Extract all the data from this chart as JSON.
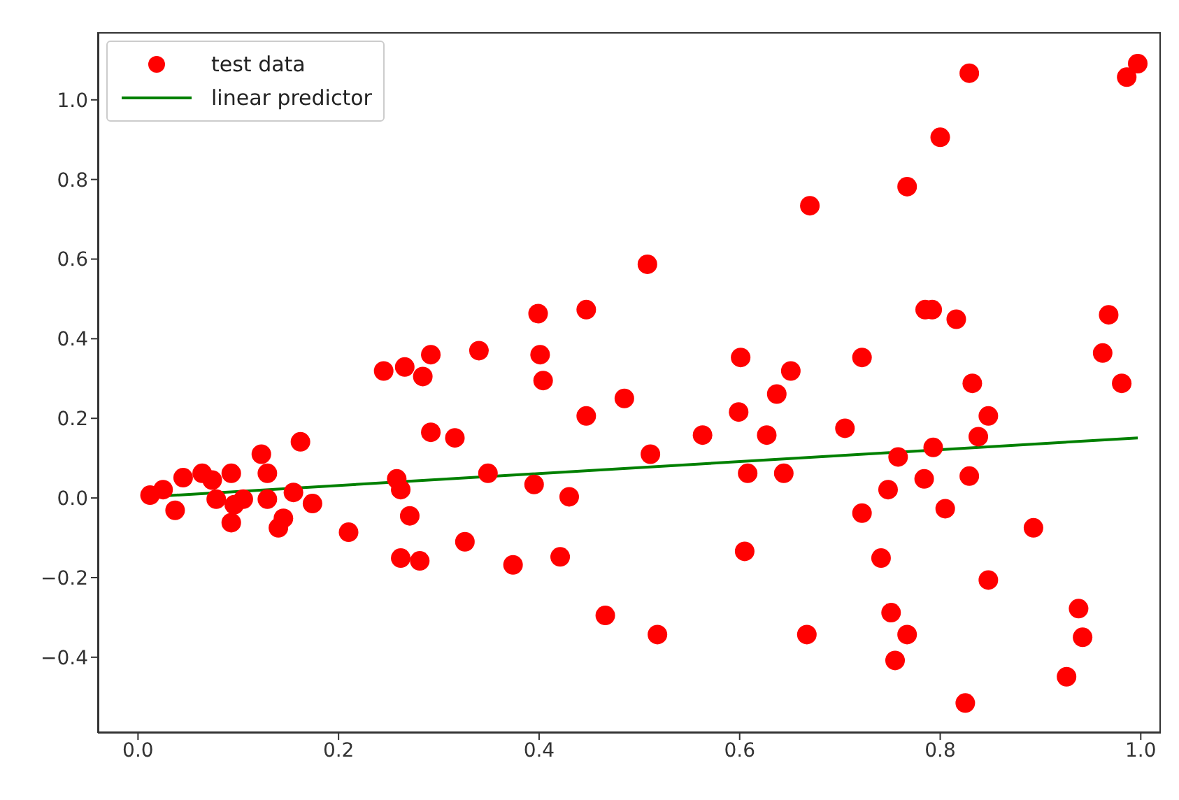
{
  "chart_data": {
    "type": "scatter",
    "legend": "top left",
    "grid": false,
    "xlim": [
      -0.04,
      1.02
    ],
    "ylim": [
      -0.59,
      1.17
    ],
    "xticks": [
      {
        "value": 0,
        "label": "0.0"
      },
      {
        "value": 0.2,
        "label": "0.2"
      },
      {
        "value": 0.4,
        "label": "0.4"
      },
      {
        "value": 0.6,
        "label": "0.6"
      },
      {
        "value": 0.8,
        "label": "0.8"
      },
      {
        "value": 1,
        "label": "1.0"
      }
    ],
    "yticks": [
      {
        "value": -0.4,
        "label": "−0.4"
      },
      {
        "value": -0.2,
        "label": "−0.2"
      },
      {
        "value": 0,
        "label": "0.0"
      },
      {
        "value": 0.2,
        "label": "0.2"
      },
      {
        "value": 0.4,
        "label": "0.4"
      },
      {
        "value": 0.6,
        "label": "0.6"
      },
      {
        "value": 0.8,
        "label": "0.8"
      },
      {
        "value": 1,
        "label": "1.0"
      }
    ],
    "series": [
      {
        "name": "test data",
        "marker": "circle",
        "color": "#ff0000",
        "x": [
          0.012,
          0.025,
          0.037,
          0.045,
          0.064,
          0.074,
          0.093,
          0.078,
          0.093,
          0.096,
          0.105,
          0.129,
          0.123,
          0.129,
          0.14,
          0.145,
          0.155,
          0.162,
          0.174,
          0.21,
          0.245,
          0.266,
          0.292,
          0.284,
          0.258,
          0.262,
          0.271,
          0.262,
          0.281,
          0.292,
          0.316,
          0.326,
          0.34,
          0.349,
          0.374,
          0.395,
          0.399,
          0.401,
          0.404,
          0.421,
          0.43,
          0.447,
          0.447,
          0.466,
          0.485,
          0.511,
          0.508,
          0.518,
          0.563,
          0.599,
          0.601,
          0.608,
          0.605,
          0.637,
          0.627,
          0.644,
          0.651,
          0.667,
          0.67,
          0.705,
          0.722,
          0.722,
          0.741,
          0.748,
          0.751,
          0.755,
          0.758,
          0.767,
          0.767,
          0.785,
          0.792,
          0.784,
          0.793,
          0.8,
          0.805,
          0.816,
          0.829,
          0.825,
          0.829,
          0.832,
          0.838,
          0.848,
          0.848,
          0.893,
          0.926,
          0.938,
          0.942,
          0.962,
          0.968,
          0.981,
          0.986,
          0.997
        ],
        "values": [
          0.007,
          0.021,
          -0.031,
          0.051,
          0.062,
          0.045,
          0.062,
          -0.003,
          -0.062,
          -0.017,
          -0.003,
          -0.003,
          0.11,
          0.062,
          -0.075,
          -0.051,
          0.014,
          0.141,
          -0.014,
          -0.086,
          0.319,
          0.329,
          0.36,
          0.305,
          0.048,
          0.021,
          -0.045,
          -0.151,
          -0.158,
          0.165,
          0.151,
          -0.11,
          0.37,
          0.062,
          -0.168,
          0.034,
          0.463,
          0.36,
          0.295,
          -0.148,
          0.003,
          0.473,
          0.206,
          -0.295,
          0.25,
          0.11,
          0.587,
          -0.343,
          0.158,
          0.216,
          0.353,
          0.062,
          -0.134,
          0.261,
          0.158,
          0.062,
          0.319,
          -0.343,
          0.734,
          0.175,
          0.353,
          -0.038,
          -0.151,
          0.021,
          -0.288,
          -0.408,
          0.103,
          -0.343,
          0.782,
          0.473,
          0.473,
          0.048,
          0.127,
          0.906,
          -0.027,
          0.449,
          1.067,
          -0.515,
          0.055,
          0.288,
          0.154,
          0.206,
          -0.206,
          -0.075,
          -0.449,
          -0.278,
          -0.35,
          0.364,
          0.46,
          0.288,
          1.057,
          1.091
        ]
      },
      {
        "name": "linear predictor",
        "type": "line",
        "color": "#008000",
        "x": [
          0.011,
          0.997
        ],
        "values": [
          0.003,
          0.151
        ]
      }
    ]
  }
}
